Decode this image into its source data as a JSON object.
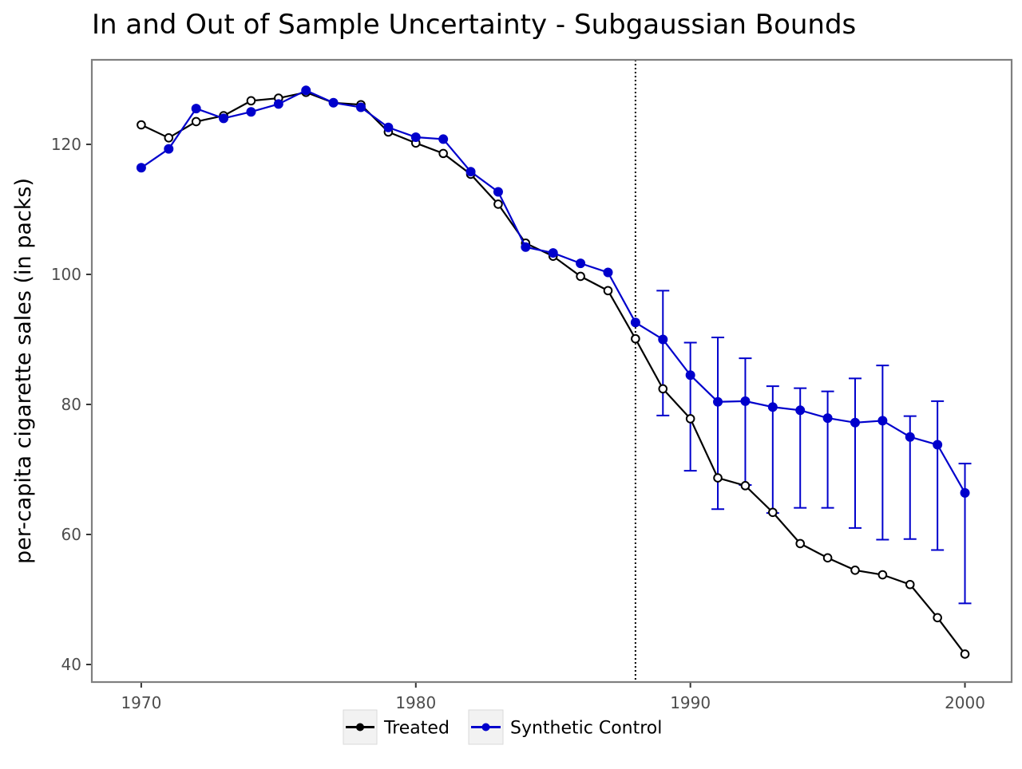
{
  "chart_data": {
    "type": "line",
    "title": "In and Out of Sample Uncertainty - Subgaussian Bounds",
    "xlabel": "",
    "ylabel": "per-capita cigarette sales (in packs)",
    "xlim": [
      1968.2,
      2001.7
    ],
    "ylim": [
      37.3,
      133.0
    ],
    "x_ticks": [
      1970,
      1980,
      1990,
      2000
    ],
    "y_ticks": [
      40,
      60,
      80,
      100,
      120
    ],
    "intervention_x": 1988,
    "grid": false,
    "legend_position": "bottom",
    "series": [
      {
        "name": "Treated",
        "color": "#000000",
        "marker": "open-circle",
        "x": [
          1970,
          1971,
          1972,
          1973,
          1974,
          1975,
          1976,
          1977,
          1978,
          1979,
          1980,
          1981,
          1982,
          1983,
          1984,
          1985,
          1986,
          1987,
          1988,
          1989,
          1990,
          1991,
          1992,
          1993,
          1994,
          1995,
          1996,
          1997,
          1998,
          1999,
          2000
        ],
        "values": [
          123.0,
          121.0,
          123.5,
          124.4,
          126.7,
          127.1,
          128.0,
          126.4,
          126.1,
          121.9,
          120.2,
          118.6,
          115.4,
          110.8,
          104.8,
          102.8,
          99.7,
          97.5,
          90.1,
          82.4,
          77.8,
          68.7,
          67.5,
          63.4,
          58.6,
          56.4,
          54.5,
          53.8,
          52.3,
          47.2,
          41.6
        ]
      },
      {
        "name": "Synthetic Control",
        "color": "#0000cc",
        "marker": "filled-circle",
        "x": [
          1970,
          1971,
          1972,
          1973,
          1974,
          1975,
          1976,
          1977,
          1978,
          1979,
          1980,
          1981,
          1982,
          1983,
          1984,
          1985,
          1986,
          1987,
          1988,
          1989,
          1990,
          1991,
          1992,
          1993,
          1994,
          1995,
          1996,
          1997,
          1998,
          1999,
          2000
        ],
        "values": [
          116.4,
          119.3,
          125.5,
          124.0,
          125.0,
          126.2,
          128.3,
          126.4,
          125.7,
          122.6,
          121.1,
          120.8,
          115.8,
          112.7,
          104.2,
          103.3,
          101.7,
          100.3,
          92.6,
          90.0,
          84.5,
          80.4,
          80.5,
          79.6,
          79.1,
          77.9,
          77.2,
          77.5,
          75.0,
          73.8,
          66.4
        ],
        "error_bars": {
          "x": [
            1989,
            1990,
            1991,
            1992,
            1993,
            1994,
            1995,
            1996,
            1997,
            1998,
            1999,
            2000
          ],
          "lower": [
            78.3,
            69.8,
            63.9,
            67.6,
            63.3,
            64.1,
            64.1,
            61.0,
            59.2,
            59.3,
            57.6,
            49.4
          ],
          "upper": [
            97.5,
            89.5,
            90.3,
            87.1,
            82.8,
            82.5,
            82.0,
            84.0,
            86.0,
            78.2,
            80.5,
            70.9
          ]
        }
      }
    ]
  }
}
